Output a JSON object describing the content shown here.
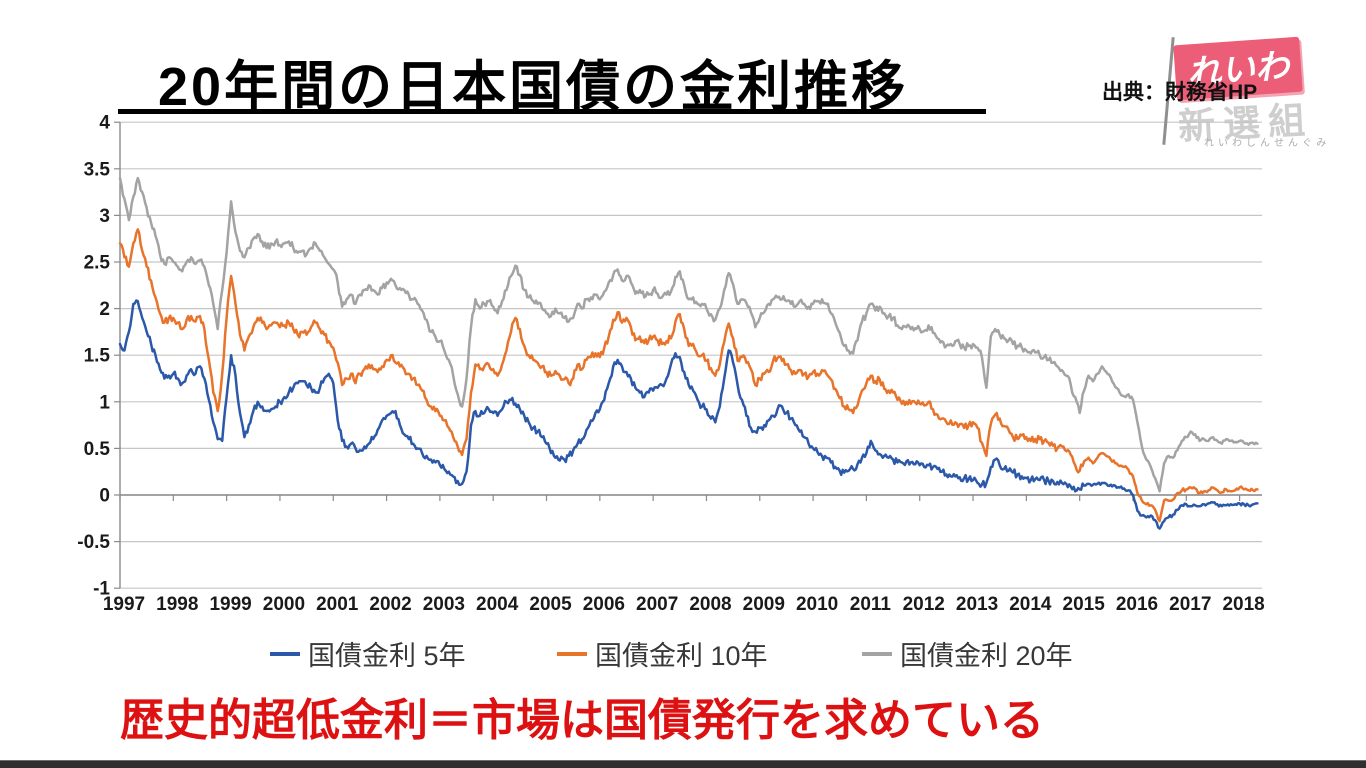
{
  "title": {
    "text": "20年間の日本国債の金利推移"
  },
  "source": {
    "text": "出典：財務省HP"
  },
  "logo": {
    "flag_text": "れいわ",
    "sub_text": "新選組",
    "small_text": "れいわしんせんぐみ",
    "flag_color": "#ec5d77"
  },
  "annotation": {
    "text": "歴史的超低金利＝市場は国債発行を求めている",
    "color": "#dd1111"
  },
  "chart_data": {
    "type": "line",
    "title": "",
    "xlabel": "",
    "ylabel": "",
    "x_start_year": 1997,
    "points_per_year": 12,
    "xlim": [
      1997,
      2018.42
    ],
    "ylim": [
      -1,
      4
    ],
    "y_ticks": [
      4,
      3.5,
      3,
      2.5,
      2,
      1.5,
      1,
      0.5,
      0,
      -0.5,
      -1
    ],
    "x_tick_labels": [
      "1997",
      "1998",
      "1999",
      "2000",
      "2001",
      "2002",
      "2003",
      "2004",
      "2005",
      "2006",
      "2007",
      "2008",
      "2009",
      "2010",
      "2011",
      "2012",
      "2013",
      "2014",
      "2015",
      "2016",
      "2017",
      "2018"
    ],
    "grid": true,
    "legend_position": "bottom",
    "series": [
      {
        "name": "国債金利 5年",
        "color": "#2b58a8",
        "values": [
          1.62,
          1.55,
          1.75,
          2.05,
          2.08,
          1.9,
          1.75,
          1.62,
          1.5,
          1.35,
          1.25,
          1.28,
          1.3,
          1.25,
          1.2,
          1.28,
          1.35,
          1.3,
          1.38,
          1.25,
          1.02,
          0.78,
          0.6,
          0.58,
          1.05,
          1.5,
          1.28,
          0.88,
          0.62,
          0.75,
          0.9,
          1.0,
          0.95,
          0.9,
          0.92,
          0.95,
          1.0,
          1.05,
          1.1,
          1.15,
          1.2,
          1.22,
          1.18,
          1.15,
          1.1,
          1.15,
          1.25,
          1.3,
          1.2,
          0.8,
          0.58,
          0.52,
          0.55,
          0.5,
          0.48,
          0.52,
          0.55,
          0.6,
          0.7,
          0.8,
          0.85,
          0.88,
          0.9,
          0.75,
          0.65,
          0.6,
          0.55,
          0.5,
          0.45,
          0.42,
          0.38,
          0.35,
          0.32,
          0.28,
          0.25,
          0.2,
          0.15,
          0.12,
          0.25,
          0.75,
          0.9,
          0.85,
          0.88,
          0.92,
          0.88,
          0.85,
          0.92,
          1.0,
          1.02,
          0.98,
          0.92,
          0.85,
          0.78,
          0.72,
          0.68,
          0.62,
          0.55,
          0.45,
          0.4,
          0.37,
          0.38,
          0.42,
          0.48,
          0.55,
          0.6,
          0.7,
          0.8,
          0.88,
          0.92,
          1.02,
          1.2,
          1.38,
          1.45,
          1.38,
          1.32,
          1.25,
          1.15,
          1.1,
          1.05,
          1.1,
          1.12,
          1.15,
          1.18,
          1.25,
          1.4,
          1.52,
          1.48,
          1.32,
          1.18,
          1.12,
          1.02,
          0.95,
          0.92,
          0.82,
          0.78,
          0.95,
          1.25,
          1.55,
          1.42,
          1.18,
          1.02,
          0.85,
          0.72,
          0.68,
          0.72,
          0.75,
          0.8,
          0.85,
          0.92,
          0.95,
          0.88,
          0.82,
          0.75,
          0.68,
          0.62,
          0.55,
          0.5,
          0.46,
          0.42,
          0.4,
          0.35,
          0.3,
          0.26,
          0.24,
          0.26,
          0.28,
          0.33,
          0.4,
          0.45,
          0.58,
          0.48,
          0.44,
          0.42,
          0.4,
          0.38,
          0.35,
          0.35,
          0.36,
          0.35,
          0.33,
          0.32,
          0.3,
          0.32,
          0.3,
          0.28,
          0.25,
          0.22,
          0.2,
          0.2,
          0.19,
          0.18,
          0.17,
          0.16,
          0.13,
          0.11,
          0.13,
          0.3,
          0.38,
          0.32,
          0.28,
          0.26,
          0.24,
          0.22,
          0.2,
          0.18,
          0.16,
          0.17,
          0.16,
          0.16,
          0.15,
          0.15,
          0.14,
          0.13,
          0.12,
          0.09,
          0.04,
          0.06,
          0.1,
          0.12,
          0.11,
          0.12,
          0.13,
          0.12,
          0.11,
          0.1,
          0.08,
          0.07,
          0.05,
          0.0,
          -0.17,
          -0.22,
          -0.24,
          -0.22,
          -0.27,
          -0.36,
          -0.28,
          -0.24,
          -0.21,
          -0.16,
          -0.11,
          -0.1,
          -0.12,
          -0.11,
          -0.12,
          -0.1,
          -0.09,
          -0.08,
          -0.1,
          -0.12,
          -0.11,
          -0.1,
          -0.1,
          -0.09,
          -0.1,
          -0.11,
          -0.1,
          -0.09
        ]
      },
      {
        "name": "国債金利 10年",
        "color": "#e8732a",
        "values": [
          2.7,
          2.55,
          2.45,
          2.7,
          2.85,
          2.62,
          2.45,
          2.3,
          2.12,
          1.95,
          1.85,
          1.9,
          1.9,
          1.85,
          1.78,
          1.88,
          1.92,
          1.86,
          1.92,
          1.78,
          1.45,
          1.1,
          0.9,
          1.3,
          1.9,
          2.35,
          2.05,
          1.72,
          1.55,
          1.7,
          1.8,
          1.9,
          1.85,
          1.78,
          1.82,
          1.85,
          1.8,
          1.82,
          1.85,
          1.78,
          1.72,
          1.75,
          1.72,
          1.8,
          1.85,
          1.78,
          1.72,
          1.65,
          1.58,
          1.42,
          1.18,
          1.25,
          1.3,
          1.2,
          1.3,
          1.35,
          1.4,
          1.35,
          1.32,
          1.38,
          1.45,
          1.5,
          1.42,
          1.38,
          1.35,
          1.3,
          1.25,
          1.18,
          1.12,
          1.02,
          0.95,
          0.9,
          0.85,
          0.8,
          0.72,
          0.62,
          0.52,
          0.43,
          0.6,
          1.1,
          1.4,
          1.35,
          1.38,
          1.4,
          1.35,
          1.28,
          1.4,
          1.55,
          1.75,
          1.9,
          1.78,
          1.6,
          1.5,
          1.45,
          1.42,
          1.38,
          1.32,
          1.28,
          1.33,
          1.28,
          1.24,
          1.2,
          1.25,
          1.4,
          1.35,
          1.45,
          1.48,
          1.52,
          1.48,
          1.58,
          1.7,
          1.88,
          1.96,
          1.85,
          1.9,
          1.8,
          1.66,
          1.7,
          1.63,
          1.66,
          1.7,
          1.66,
          1.62,
          1.65,
          1.68,
          1.86,
          1.94,
          1.78,
          1.6,
          1.62,
          1.5,
          1.5,
          1.44,
          1.36,
          1.28,
          1.4,
          1.64,
          1.84,
          1.68,
          1.44,
          1.48,
          1.42,
          1.35,
          1.18,
          1.25,
          1.3,
          1.32,
          1.44,
          1.47,
          1.44,
          1.4,
          1.34,
          1.3,
          1.34,
          1.3,
          1.27,
          1.32,
          1.3,
          1.34,
          1.3,
          1.24,
          1.14,
          1.04,
          0.95,
          0.92,
          0.88,
          0.96,
          1.12,
          1.2,
          1.28,
          1.22,
          1.24,
          1.14,
          1.12,
          1.1,
          1.02,
          0.98,
          1.0,
          0.98,
          0.99,
          0.98,
          0.96,
          1.0,
          0.92,
          0.86,
          0.82,
          0.78,
          0.8,
          0.78,
          0.76,
          0.72,
          0.75,
          0.78,
          0.72,
          0.56,
          0.42,
          0.76,
          0.86,
          0.82,
          0.74,
          0.7,
          0.62,
          0.6,
          0.64,
          0.62,
          0.58,
          0.6,
          0.6,
          0.58,
          0.56,
          0.53,
          0.5,
          0.52,
          0.47,
          0.43,
          0.32,
          0.26,
          0.36,
          0.4,
          0.34,
          0.4,
          0.45,
          0.42,
          0.38,
          0.34,
          0.31,
          0.3,
          0.27,
          0.2,
          0.02,
          -0.06,
          -0.1,
          -0.11,
          -0.16,
          -0.28,
          -0.06,
          -0.06,
          -0.05,
          0.02,
          0.05,
          0.06,
          0.08,
          0.07,
          0.02,
          0.04,
          0.05,
          0.08,
          0.05,
          0.03,
          0.06,
          0.04,
          0.05,
          0.08,
          0.06,
          0.05,
          0.05,
          0.06
        ]
      },
      {
        "name": "国債金利 20年",
        "color": "#a3a3a3",
        "values": [
          3.4,
          3.18,
          2.95,
          3.2,
          3.4,
          3.25,
          3.08,
          2.92,
          2.78,
          2.58,
          2.48,
          2.55,
          2.5,
          2.45,
          2.4,
          2.5,
          2.55,
          2.48,
          2.52,
          2.45,
          2.25,
          2.05,
          1.78,
          2.2,
          2.6,
          3.15,
          2.82,
          2.62,
          2.55,
          2.65,
          2.75,
          2.8,
          2.72,
          2.65,
          2.7,
          2.72,
          2.68,
          2.7,
          2.72,
          2.65,
          2.6,
          2.62,
          2.58,
          2.65,
          2.7,
          2.62,
          2.55,
          2.48,
          2.42,
          2.28,
          2.02,
          2.1,
          2.15,
          2.05,
          2.15,
          2.2,
          2.25,
          2.2,
          2.15,
          2.22,
          2.28,
          2.32,
          2.25,
          2.22,
          2.2,
          2.15,
          2.1,
          2.05,
          1.98,
          1.88,
          1.75,
          1.7,
          1.65,
          1.55,
          1.45,
          1.28,
          1.08,
          0.95,
          1.25,
          1.8,
          2.1,
          2.0,
          2.05,
          2.08,
          2.02,
          1.95,
          2.08,
          2.2,
          2.35,
          2.46,
          2.36,
          2.2,
          2.12,
          2.08,
          2.05,
          2.0,
          1.95,
          1.92,
          2.0,
          1.95,
          1.9,
          1.86,
          1.9,
          2.05,
          2.0,
          2.1,
          2.12,
          2.15,
          2.1,
          2.18,
          2.28,
          2.36,
          2.42,
          2.3,
          2.35,
          2.28,
          2.16,
          2.2,
          2.12,
          2.15,
          2.2,
          2.16,
          2.12,
          2.15,
          2.18,
          2.34,
          2.4,
          2.25,
          2.1,
          2.12,
          2.05,
          2.05,
          2.0,
          1.94,
          1.88,
          2.0,
          2.2,
          2.38,
          2.26,
          2.05,
          2.1,
          2.06,
          1.96,
          1.8,
          1.9,
          1.96,
          2.05,
          2.1,
          2.12,
          2.1,
          2.08,
          2.05,
          2.02,
          2.08,
          2.05,
          2.02,
          2.05,
          2.08,
          2.1,
          2.05,
          1.95,
          1.85,
          1.74,
          1.6,
          1.55,
          1.52,
          1.66,
          1.86,
          1.95,
          2.05,
          1.98,
          2.02,
          1.95,
          1.92,
          1.9,
          1.82,
          1.78,
          1.8,
          1.78,
          1.79,
          1.78,
          1.76,
          1.82,
          1.74,
          1.68,
          1.65,
          1.6,
          1.62,
          1.65,
          1.62,
          1.58,
          1.6,
          1.62,
          1.58,
          1.48,
          1.15,
          1.7,
          1.78,
          1.72,
          1.68,
          1.66,
          1.62,
          1.6,
          1.58,
          1.55,
          1.52,
          1.53,
          1.5,
          1.48,
          1.45,
          1.42,
          1.38,
          1.34,
          1.28,
          1.18,
          1.05,
          0.88,
          1.12,
          1.28,
          1.22,
          1.3,
          1.38,
          1.32,
          1.26,
          1.16,
          1.1,
          1.06,
          1.08,
          1.02,
          0.78,
          0.52,
          0.38,
          0.3,
          0.18,
          0.04,
          0.34,
          0.42,
          0.4,
          0.48,
          0.58,
          0.62,
          0.68,
          0.65,
          0.58,
          0.6,
          0.58,
          0.62,
          0.58,
          0.55,
          0.6,
          0.58,
          0.57,
          0.58,
          0.56,
          0.54,
          0.56,
          0.55
        ]
      }
    ]
  }
}
